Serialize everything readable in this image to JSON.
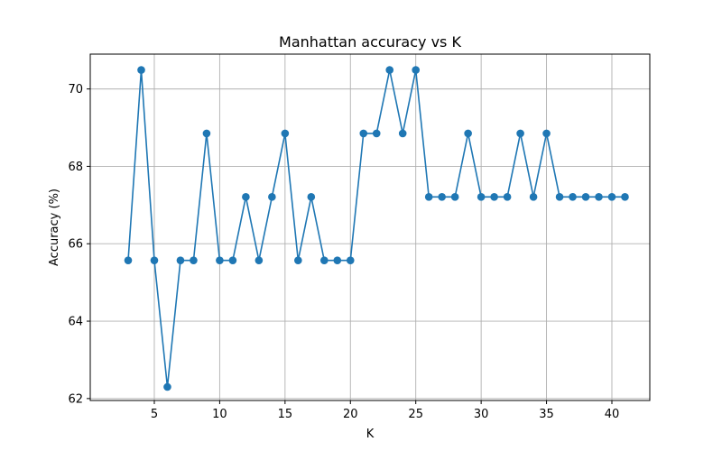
{
  "chart_data": {
    "type": "line",
    "title": "Manhattan accuracy vs K",
    "xlabel": "K",
    "ylabel": "Accuracy (%)",
    "xlim": [
      0.1,
      42.9
    ],
    "ylim": [
      61.95,
      70.9
    ],
    "xticks": [
      5,
      10,
      15,
      20,
      25,
      30,
      35,
      40
    ],
    "yticks": [
      62,
      64,
      66,
      68,
      70
    ],
    "grid": true,
    "marker": "circle",
    "color": "#1f77b4",
    "series": [
      {
        "name": "Manhattan",
        "x": [
          3,
          4,
          5,
          6,
          7,
          8,
          9,
          10,
          11,
          12,
          13,
          14,
          15,
          16,
          17,
          18,
          19,
          20,
          21,
          22,
          23,
          24,
          25,
          26,
          27,
          28,
          29,
          30,
          31,
          32,
          33,
          34,
          35,
          36,
          37,
          38,
          39,
          40,
          41
        ],
        "y": [
          65.57,
          70.49,
          65.57,
          62.3,
          65.57,
          65.57,
          68.85,
          65.57,
          65.57,
          67.21,
          65.57,
          67.21,
          68.85,
          65.57,
          67.21,
          65.57,
          65.57,
          65.57,
          68.85,
          68.85,
          70.49,
          68.85,
          70.49,
          67.21,
          67.21,
          67.21,
          68.85,
          67.21,
          67.21,
          67.21,
          68.85,
          67.21,
          68.85,
          67.21,
          67.21,
          67.21,
          67.21,
          67.21,
          67.21
        ]
      }
    ]
  }
}
